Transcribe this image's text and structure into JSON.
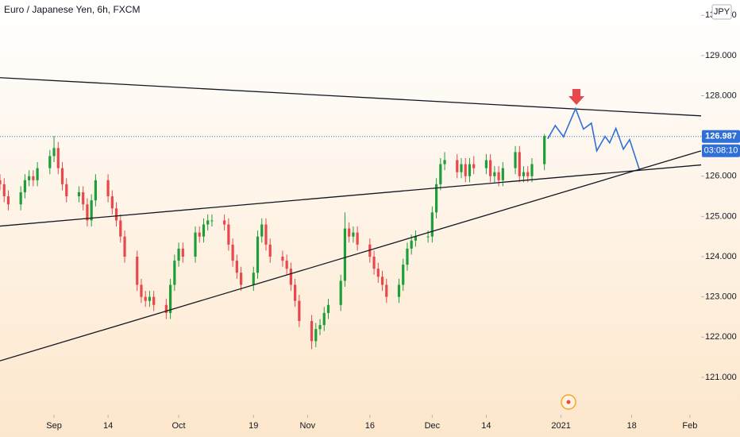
{
  "chart_data": {
    "type": "candlestick",
    "title": "Euro / Japanese Yen, 6h, FXCM",
    "currency": "JPY",
    "countdown": "03:08:10",
    "last_price": {
      "value": 126.987,
      "label": "126.987"
    },
    "up_color": "#1e9e38",
    "down_color": "#e8474b",
    "xlim": [
      0,
      168.7
    ],
    "ylim": [
      120.07,
      130.38
    ],
    "xticks": [
      {
        "value": 13,
        "label": "Sep"
      },
      {
        "value": 26,
        "label": "14"
      },
      {
        "value": 43,
        "label": "Oct"
      },
      {
        "value": 61,
        "label": "19"
      },
      {
        "value": 74,
        "label": "Nov"
      },
      {
        "value": 89,
        "label": "16"
      },
      {
        "value": 104,
        "label": "Dec"
      },
      {
        "value": 117,
        "label": "14"
      },
      {
        "value": 135,
        "label": "2021"
      },
      {
        "value": 152,
        "label": "18"
      },
      {
        "value": 166,
        "label": "Feb"
      }
    ],
    "yticks": [
      {
        "value": 121,
        "label": "121.000"
      },
      {
        "value": 122,
        "label": "122.000"
      },
      {
        "value": 123,
        "label": "123.000"
      },
      {
        "value": 124,
        "label": "124.000"
      },
      {
        "value": 125,
        "label": "125.000"
      },
      {
        "value": 126,
        "label": "126.000"
      },
      {
        "value": 127,
        "label": "127.000"
      },
      {
        "value": 128,
        "label": "128.000"
      },
      {
        "value": 129,
        "label": "129.000"
      },
      {
        "value": 130,
        "label": "130.000"
      }
    ],
    "x": [
      0,
      1,
      2,
      5,
      6,
      7,
      8,
      9,
      12,
      13,
      14,
      15,
      16,
      19,
      20,
      21,
      22,
      23,
      26,
      27,
      28,
      29,
      30,
      33,
      34,
      35,
      36,
      37,
      40,
      41,
      42,
      43,
      44,
      47,
      48,
      49,
      50,
      51,
      54,
      55,
      56,
      57,
      58,
      61,
      62,
      63,
      64,
      65,
      68,
      69,
      70,
      71,
      72,
      75,
      76,
      77,
      78,
      79,
      82,
      83,
      84,
      85,
      86,
      89,
      90,
      91,
      92,
      93,
      96,
      97,
      98,
      99,
      100,
      103,
      104,
      105,
      106,
      107,
      110,
      111,
      112,
      113,
      114,
      117,
      118,
      119,
      120,
      121,
      124,
      125,
      126,
      127,
      128,
      131
    ],
    "open": [
      125.9,
      125.8,
      125.5,
      125.3,
      125.6,
      125.9,
      126.0,
      125.9,
      126.2,
      126.5,
      126.7,
      126.2,
      125.8,
      125.5,
      125.6,
      125.3,
      124.9,
      125.4,
      125.9,
      125.5,
      125.2,
      124.9,
      124.5,
      124.0,
      123.3,
      123.0,
      122.9,
      123.0,
      122.8,
      122.6,
      123.3,
      123.9,
      124.2,
      124.0,
      124.6,
      124.5,
      124.8,
      124.9,
      124.9,
      124.8,
      124.3,
      123.9,
      123.6,
      123.3,
      123.6,
      124.5,
      124.8,
      124.3,
      124.0,
      123.9,
      123.7,
      123.3,
      122.9,
      122.4,
      121.9,
      122.2,
      122.3,
      122.6,
      122.8,
      123.4,
      124.7,
      124.5,
      124.6,
      124.3,
      124.0,
      123.7,
      123.5,
      123.3,
      123.0,
      123.3,
      123.8,
      124.2,
      124.4,
      124.5,
      124.5,
      125.1,
      125.8,
      126.3,
      126.4,
      126.1,
      126.3,
      126.0,
      126.3,
      126.2,
      126.4,
      126.0,
      126.1,
      125.9,
      126.2,
      126.6,
      126.0,
      126.1,
      126.0,
      126.3
    ],
    "high": [
      126.05,
      125.95,
      125.65,
      125.75,
      126.05,
      126.15,
      126.15,
      126.35,
      126.65,
      127.0,
      126.85,
      126.35,
      125.95,
      125.75,
      125.75,
      125.45,
      125.55,
      126.05,
      126.05,
      125.65,
      125.35,
      125.05,
      124.65,
      124.15,
      123.45,
      123.15,
      123.15,
      123.15,
      122.95,
      123.45,
      124.05,
      124.35,
      124.35,
      124.75,
      124.75,
      124.95,
      125.05,
      125.05,
      125.05,
      124.95,
      124.45,
      124.05,
      123.75,
      123.75,
      124.65,
      124.95,
      124.95,
      124.45,
      124.15,
      124.05,
      123.85,
      123.45,
      123.05,
      122.55,
      122.35,
      122.45,
      122.75,
      122.95,
      123.55,
      125.1,
      124.85,
      124.75,
      124.75,
      124.45,
      124.15,
      123.85,
      123.65,
      123.45,
      123.45,
      123.95,
      124.35,
      124.55,
      124.65,
      124.65,
      125.25,
      125.95,
      126.45,
      126.6,
      126.55,
      126.45,
      126.45,
      126.45,
      126.5,
      126.55,
      126.55,
      126.25,
      126.25,
      126.35,
      126.75,
      126.75,
      126.25,
      126.25,
      126.45,
      127.05
    ],
    "low": [
      125.65,
      125.35,
      125.15,
      125.15,
      125.45,
      125.75,
      125.75,
      125.75,
      126.05,
      126.35,
      126.05,
      125.65,
      125.35,
      125.35,
      125.15,
      124.75,
      124.75,
      125.25,
      125.35,
      125.05,
      124.75,
      124.35,
      123.85,
      123.15,
      122.85,
      122.75,
      122.75,
      122.65,
      122.45,
      122.45,
      123.15,
      123.75,
      123.85,
      123.85,
      124.35,
      124.35,
      124.65,
      124.75,
      124.65,
      124.15,
      123.75,
      123.45,
      123.15,
      123.15,
      123.45,
      124.35,
      124.15,
      123.85,
      123.75,
      123.55,
      123.15,
      122.75,
      122.25,
      121.7,
      121.75,
      122.05,
      122.15,
      122.45,
      122.65,
      123.25,
      124.35,
      124.35,
      124.15,
      123.85,
      123.55,
      123.35,
      123.15,
      122.85,
      122.85,
      123.15,
      123.65,
      124.05,
      124.25,
      124.35,
      124.35,
      124.95,
      125.65,
      126.15,
      125.95,
      125.95,
      125.85,
      125.85,
      126.05,
      126.05,
      125.85,
      125.85,
      125.75,
      125.75,
      126.05,
      125.85,
      125.85,
      125.85,
      125.85,
      126.15
    ],
    "close": [
      125.8,
      125.5,
      125.3,
      125.6,
      125.9,
      126.0,
      125.9,
      126.2,
      126.5,
      126.7,
      126.2,
      125.8,
      125.5,
      125.6,
      125.3,
      124.9,
      125.4,
      125.9,
      125.5,
      125.2,
      124.9,
      124.5,
      124.0,
      123.3,
      123.0,
      122.9,
      123.0,
      122.8,
      122.6,
      123.3,
      123.9,
      124.2,
      124.0,
      124.6,
      124.5,
      124.8,
      124.9,
      124.9,
      124.8,
      124.3,
      123.9,
      123.6,
      123.3,
      123.6,
      124.5,
      124.8,
      124.3,
      124.0,
      123.9,
      123.7,
      123.3,
      122.9,
      122.4,
      121.9,
      122.2,
      122.3,
      122.6,
      122.8,
      123.4,
      124.7,
      124.5,
      124.6,
      124.3,
      124.0,
      123.7,
      123.5,
      123.3,
      123.0,
      123.3,
      123.8,
      124.2,
      124.4,
      124.5,
      124.5,
      125.1,
      125.8,
      126.3,
      126.4,
      126.1,
      126.3,
      126.0,
      126.3,
      126.2,
      126.4,
      126.0,
      126.1,
      125.9,
      126.2,
      126.6,
      126.0,
      126.1,
      126.0,
      126.3,
      127.0
    ],
    "trendlines": [
      {
        "x": [
          0,
          168.7
        ],
        "y": [
          128.45,
          127.5
        ],
        "color": "#131722"
      },
      {
        "x": [
          0,
          168.7
        ],
        "y": [
          124.76,
          126.28
        ],
        "color": "#131722"
      },
      {
        "x": [
          0,
          168.7
        ],
        "y": [
          121.41,
          126.63
        ],
        "color": "#131722"
      }
    ],
    "projection": {
      "x": [
        131.8,
        133.6,
        135.6,
        138.5,
        140.4,
        142.3,
        143.6,
        145.6,
        146.7,
        148.2,
        150.0,
        151.5,
        153.8
      ],
      "y": [
        126.93,
        127.26,
        126.98,
        127.68,
        127.17,
        127.32,
        126.63,
        126.99,
        126.83,
        127.19,
        126.67,
        126.91,
        126.18
      ],
      "color": "#2f6fd6"
    }
  }
}
